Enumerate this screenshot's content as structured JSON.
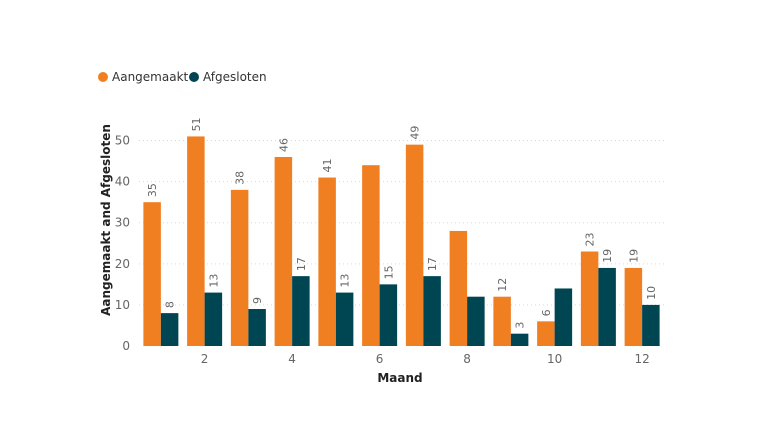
{
  "chart_data": {
    "type": "bar",
    "xlabel": "Maand",
    "ylabel": "Aangemaakt and Afgesloten",
    "x": [
      1,
      2,
      3,
      4,
      5,
      6,
      7,
      8,
      9,
      10,
      11,
      12
    ],
    "x_tick_labels": [
      {
        "x": 2,
        "label": "2"
      },
      {
        "x": 4,
        "label": "4"
      },
      {
        "x": 6,
        "label": "6"
      },
      {
        "x": 8,
        "label": "8"
      },
      {
        "x": 10,
        "label": "10"
      },
      {
        "x": 12,
        "label": "12"
      }
    ],
    "y_ticks": [
      0,
      10,
      20,
      30,
      40,
      50
    ],
    "ylim": [
      0,
      55
    ],
    "grid": true,
    "legend_position": "top-left",
    "series": [
      {
        "name": "Aangemaakt",
        "color": "#F07F22",
        "values": [
          35,
          51,
          38,
          46,
          41,
          44,
          49,
          28,
          12,
          6,
          23,
          19
        ],
        "labels": [
          "35",
          "51",
          "38",
          "46",
          "41",
          "",
          "49",
          "",
          "12",
          "6",
          "23",
          "19"
        ]
      },
      {
        "name": "Afgesloten",
        "color": "#004652",
        "values": [
          8,
          13,
          9,
          17,
          13,
          15,
          17,
          12,
          3,
          14,
          19,
          10
        ],
        "labels": [
          "8",
          "13",
          "9",
          "17",
          "13",
          "15",
          "17",
          "",
          "3",
          "",
          "19",
          "10"
        ]
      }
    ]
  }
}
